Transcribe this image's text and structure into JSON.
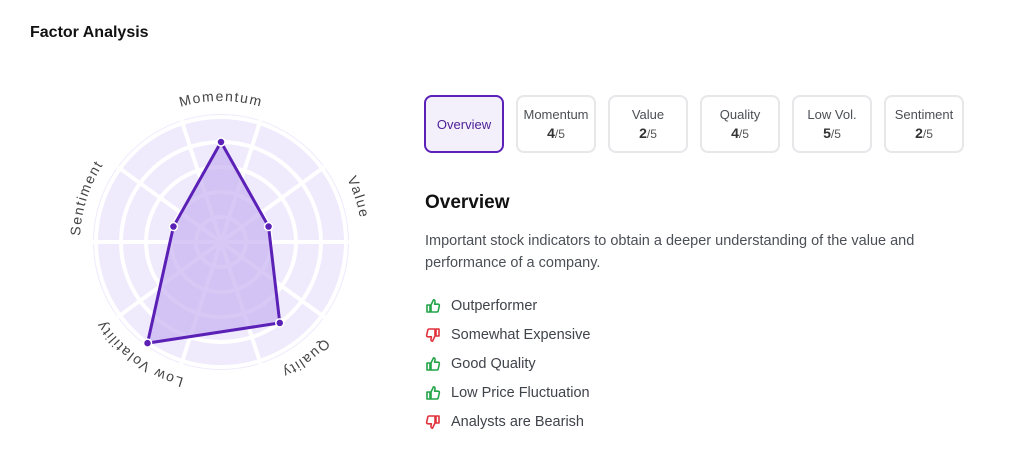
{
  "page": {
    "title": "Factor Analysis"
  },
  "colors": {
    "accent": "#5b21b6",
    "radar_fill": "#c9b6f2",
    "radar_bg": "#efeafc",
    "positive": "#22a447",
    "negative": "#e0313b"
  },
  "tabs": [
    {
      "label": "Overview",
      "active": true
    },
    {
      "label": "Momentum",
      "score": "4",
      "max": "/5"
    },
    {
      "label": "Value",
      "score": "2",
      "max": "/5"
    },
    {
      "label": "Quality",
      "score": "4",
      "max": "/5"
    },
    {
      "label": "Low Vol.",
      "score": "5",
      "max": "/5"
    },
    {
      "label": "Sentiment",
      "score": "2",
      "max": "/5"
    }
  ],
  "overview": {
    "heading": "Overview",
    "description": "Important stock indicators to obtain a deeper understanding of the value and performance of a company.",
    "signals": [
      {
        "text": "Outperformer",
        "sentiment": "positive",
        "icon": "thumbs-up-icon"
      },
      {
        "text": "Somewhat Expensive",
        "sentiment": "negative",
        "icon": "thumbs-down-icon"
      },
      {
        "text": "Good Quality",
        "sentiment": "positive",
        "icon": "thumbs-up-icon"
      },
      {
        "text": "Low Price Fluctuation",
        "sentiment": "positive",
        "icon": "thumbs-up-icon"
      },
      {
        "text": "Analysts are Bearish",
        "sentiment": "negative",
        "icon": "thumbs-down-icon"
      }
    ]
  },
  "chart_data": {
    "type": "radar",
    "axes": [
      "Momentum",
      "Value",
      "Quality",
      "Low Volatility",
      "Sentiment"
    ],
    "values": [
      4,
      2,
      4,
      5,
      2
    ],
    "range": [
      0,
      5
    ],
    "grid": true
  }
}
